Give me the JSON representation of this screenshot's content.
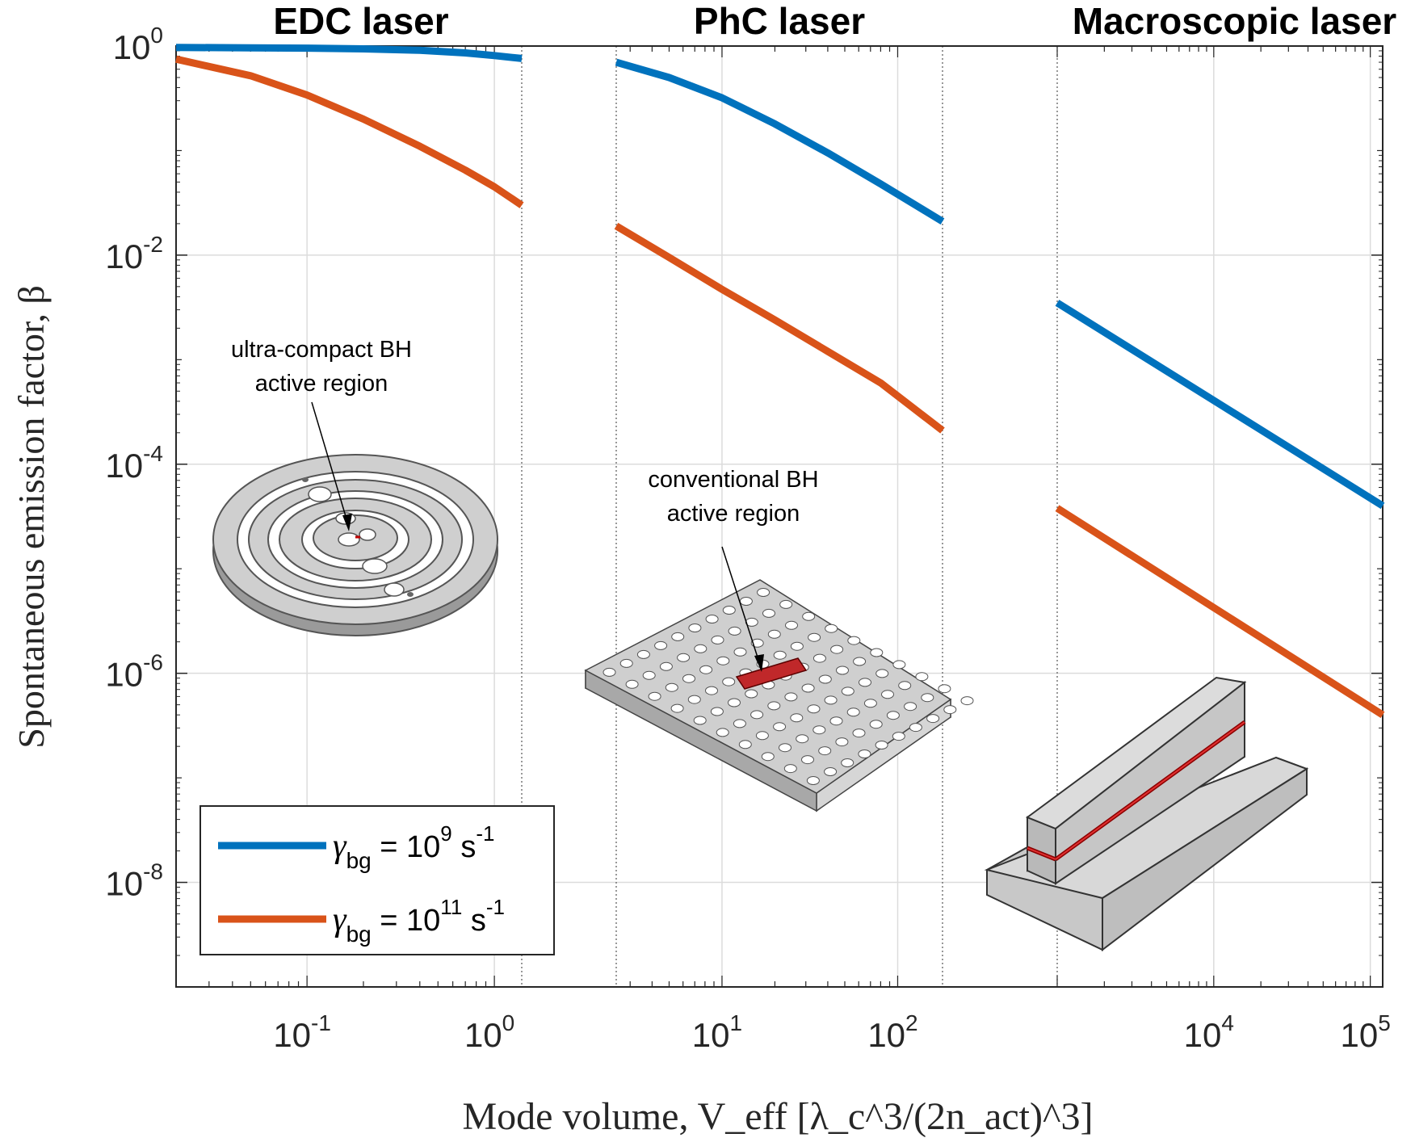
{
  "chart_data": {
    "type": "line",
    "yscale": "log",
    "xscale": "log",
    "ylabel": "Spontaneous emission factor, β",
    "xlabel": "Mode volume, V_eff [λ_c^3/(2n_act)^3]",
    "ylim": [
      1e-09,
      1
    ],
    "y_ticks": [
      {
        "value": 1,
        "base": "10",
        "exp": "0"
      },
      {
        "value": 0.01,
        "base": "10",
        "exp": "-2"
      },
      {
        "value": 0.0001,
        "base": "10",
        "exp": "-4"
      },
      {
        "value": 1e-06,
        "base": "10",
        "exp": "-6"
      },
      {
        "value": 1e-08,
        "base": "10",
        "exp": "-8"
      }
    ],
    "legend": {
      "location": "bottom-left",
      "entries": [
        {
          "series": "g9",
          "symbol": "γ",
          "sub": "bg",
          "text": " = 10",
          "exp": "9",
          "unit": " s",
          "unit_exp": "-1"
        },
        {
          "series": "g11",
          "symbol": "γ",
          "sub": "bg",
          "text": " = 10",
          "exp": "11",
          "unit": " s",
          "unit_exp": "-1"
        }
      ]
    },
    "panels": [
      {
        "title": "EDC laser",
        "xlim": [
          0.02,
          1.4
        ],
        "x_ticks": [
          {
            "value": 0.1,
            "base": "10",
            "exp": "-1"
          },
          {
            "value": 1,
            "base": "10",
            "exp": "0"
          }
        ],
        "annotation": {
          "lines": [
            "ultra-compact BH",
            "active region"
          ]
        },
        "series": [
          {
            "name": "g9",
            "color": "#0072BD",
            "x": [
              0.02,
              0.05,
              0.1,
              0.2,
              0.4,
              0.7,
              1.0,
              1.4
            ],
            "y": [
              0.97,
              0.96,
              0.955,
              0.94,
              0.91,
              0.86,
              0.81,
              0.76
            ]
          },
          {
            "name": "g11",
            "color": "#D95319",
            "x": [
              0.02,
              0.05,
              0.1,
              0.2,
              0.4,
              0.7,
              1.0,
              1.4
            ],
            "y": [
              0.75,
              0.52,
              0.34,
              0.2,
              0.11,
              0.065,
              0.045,
              0.03
            ]
          }
        ]
      },
      {
        "title": "PhC laser",
        "xlim": [
          2.5,
          180
        ],
        "x_ticks": [
          {
            "value": 10,
            "base": "10",
            "exp": "1"
          },
          {
            "value": 100,
            "base": "10",
            "exp": "2"
          }
        ],
        "annotation": {
          "lines": [
            "conventional BH",
            "active region"
          ]
        },
        "series": [
          {
            "name": "g9",
            "color": "#0072BD",
            "x": [
              2.5,
              5,
              10,
              20,
              40,
              80,
              180
            ],
            "y": [
              0.7,
              0.5,
              0.32,
              0.18,
              0.095,
              0.048,
              0.021
            ]
          },
          {
            "name": "g11",
            "color": "#D95319",
            "x": [
              2.5,
              5,
              10,
              20,
              40,
              80,
              180
            ],
            "y": [
              0.019,
              0.0095,
              0.0047,
              0.0024,
              0.0012,
              0.0006,
              0.00021
            ]
          }
        ]
      },
      {
        "title": "Macroscopic laser",
        "xlim": [
          1000,
          120000
        ],
        "x_ticks": [
          {
            "value": 10000,
            "base": "10",
            "exp": "4"
          },
          {
            "value": 100000,
            "base": "10",
            "exp": "5"
          }
        ],
        "annotation": {
          "lines": []
        },
        "series": [
          {
            "name": "g9",
            "color": "#0072BD",
            "x": [
              1000,
              120000
            ],
            "y": [
              0.0035,
              4e-05
            ]
          },
          {
            "name": "g11",
            "color": "#D95319",
            "x": [
              1000,
              120000
            ],
            "y": [
              3.8e-05,
              4e-07
            ]
          }
        ]
      }
    ]
  }
}
